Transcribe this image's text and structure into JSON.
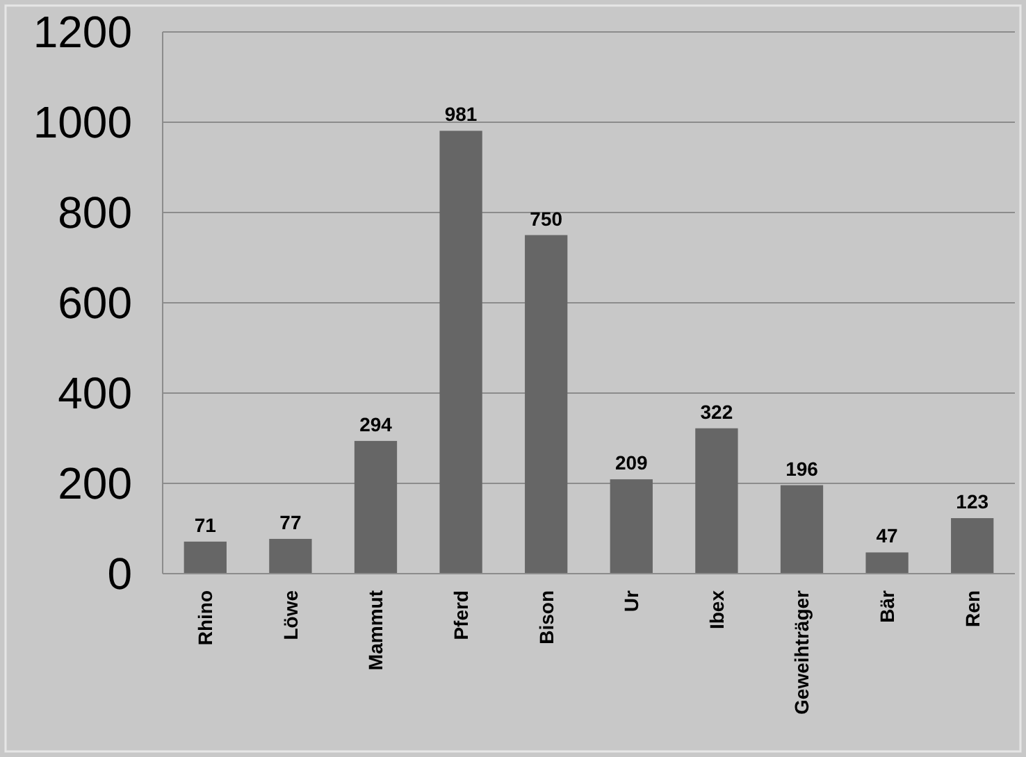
{
  "chart_data": {
    "type": "bar",
    "categories": [
      "Rhino",
      "Löwe",
      "Mammut",
      "Pferd",
      "Bison",
      "Ur",
      "Ibex",
      "Geweihträger",
      "Bär",
      "Ren"
    ],
    "values": [
      71,
      77,
      294,
      981,
      750,
      209,
      322,
      196,
      47,
      123
    ],
    "color": "#666666",
    "ylim": [
      0,
      1200
    ],
    "yticks": [
      0,
      200,
      400,
      600,
      800,
      1000,
      1200
    ],
    "grid": "y",
    "data_labels": true
  }
}
